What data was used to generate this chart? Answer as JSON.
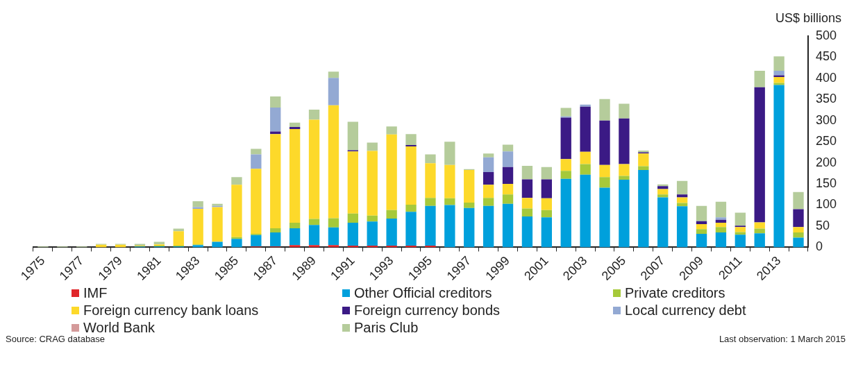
{
  "chart_data": {
    "type": "bar",
    "stacked": true,
    "ylabel": "US$ billions",
    "categories": [
      "1975",
      null,
      "1977",
      null,
      "1979",
      null,
      "1981",
      null,
      "1983",
      null,
      "1985",
      null,
      "1987",
      null,
      "1989",
      null,
      "1991",
      null,
      "1993",
      null,
      "1995",
      null,
      "1997",
      null,
      "1999",
      null,
      "2001",
      null,
      "2003",
      null,
      "2005",
      null,
      "2007",
      null,
      "2009",
      null,
      "2011",
      null,
      "2013",
      null
    ],
    "ylim": [
      0,
      500
    ],
    "yticks": [
      0,
      50,
      100,
      150,
      200,
      250,
      300,
      350,
      400,
      450,
      500
    ],
    "grid": false,
    "legend": "bottom",
    "series": [
      {
        "name": "IMF",
        "color": "#e0262a",
        "values": [
          0,
          0,
          0,
          0,
          0,
          0,
          0,
          0,
          0,
          0,
          0,
          2,
          2,
          5,
          5,
          5,
          4,
          4,
          4,
          4,
          4,
          0,
          0,
          0,
          0,
          0,
          0,
          0,
          0,
          0,
          0,
          0,
          0,
          0,
          0,
          0,
          0,
          0,
          0,
          0
        ]
      },
      {
        "name": "Other Official creditors",
        "color": "#00a0dc",
        "values": [
          0,
          0,
          0,
          0,
          0,
          2,
          2,
          2,
          5,
          13,
          20,
          27,
          33,
          40,
          48,
          42,
          54,
          57,
          64,
          80,
          94,
          100,
          93,
          98,
          103,
          73,
          71,
          162,
          172,
          141,
          160,
          183,
          118,
          97,
          32,
          35,
          30,
          33,
          384,
          23
        ]
      },
      {
        "name": "Private creditors",
        "color": "#a6c93a",
        "values": [
          0,
          0,
          0,
          0,
          0,
          0,
          2,
          2,
          2,
          0,
          4,
          3,
          10,
          13,
          14,
          22,
          22,
          14,
          20,
          17,
          19,
          16,
          13,
          19,
          22,
          19,
          17,
          19,
          25,
          25,
          9,
          9,
          7,
          8,
          11,
          13,
          6,
          11,
          5,
          12
        ]
      },
      {
        "name": "Foreign currency bank loans",
        "color": "#fdd92a",
        "values": [
          0,
          0,
          0,
          6,
          6,
          2,
          3,
          34,
          84,
          82,
          124,
          154,
          223,
          222,
          235,
          267,
          147,
          153,
          179,
          138,
          82,
          79,
          77,
          31,
          25,
          25,
          28,
          28,
          29,
          29,
          28,
          30,
          13,
          13,
          12,
          10,
          12,
          15,
          14,
          13
        ]
      },
      {
        "name": "Foreign currency bonds",
        "color": "#3b1a85",
        "values": [
          0,
          0,
          0,
          0,
          0,
          0,
          0,
          0,
          0,
          0,
          0,
          0,
          6,
          5,
          0,
          0,
          3,
          0,
          0,
          3,
          0,
          0,
          0,
          30,
          40,
          44,
          45,
          98,
          107,
          105,
          108,
          3,
          7,
          7,
          7,
          7,
          3,
          320,
          4,
          42
        ]
      },
      {
        "name": "Local currency debt",
        "color": "#93a9d3",
        "values": [
          0,
          0,
          0,
          0,
          0,
          0,
          0,
          0,
          4,
          3,
          0,
          34,
          57,
          0,
          0,
          65,
          0,
          0,
          0,
          0,
          0,
          0,
          0,
          35,
          37,
          0,
          0,
          3,
          5,
          0,
          0,
          0,
          0,
          0,
          0,
          6,
          0,
          0,
          11,
          0
        ]
      },
      {
        "name": "World Bank",
        "color": "#d49a9a",
        "values": [
          0,
          0,
          0,
          0,
          0,
          0,
          0,
          0,
          0,
          0,
          0,
          0,
          0,
          0,
          0,
          0,
          0,
          0,
          0,
          0,
          0,
          0,
          0,
          0,
          0,
          0,
          0,
          0,
          0,
          0,
          0,
          0,
          0,
          0,
          0,
          0,
          0,
          0,
          0,
          0
        ]
      },
      {
        "name": "Paris Club",
        "color": "#b5cc9b",
        "values": [
          2,
          2,
          2,
          2,
          2,
          4,
          6,
          6,
          14,
          5,
          18,
          13,
          26,
          10,
          24,
          15,
          67,
          20,
          19,
          26,
          21,
          55,
          2,
          9,
          16,
          32,
          29,
          20,
          0,
          51,
          35,
          4,
          4,
          32,
          36,
          37,
          31,
          39,
          34,
          41
        ]
      }
    ],
    "annotations": [
      "Source: CRAG database",
      "Last observation: 1 March 2015"
    ]
  }
}
